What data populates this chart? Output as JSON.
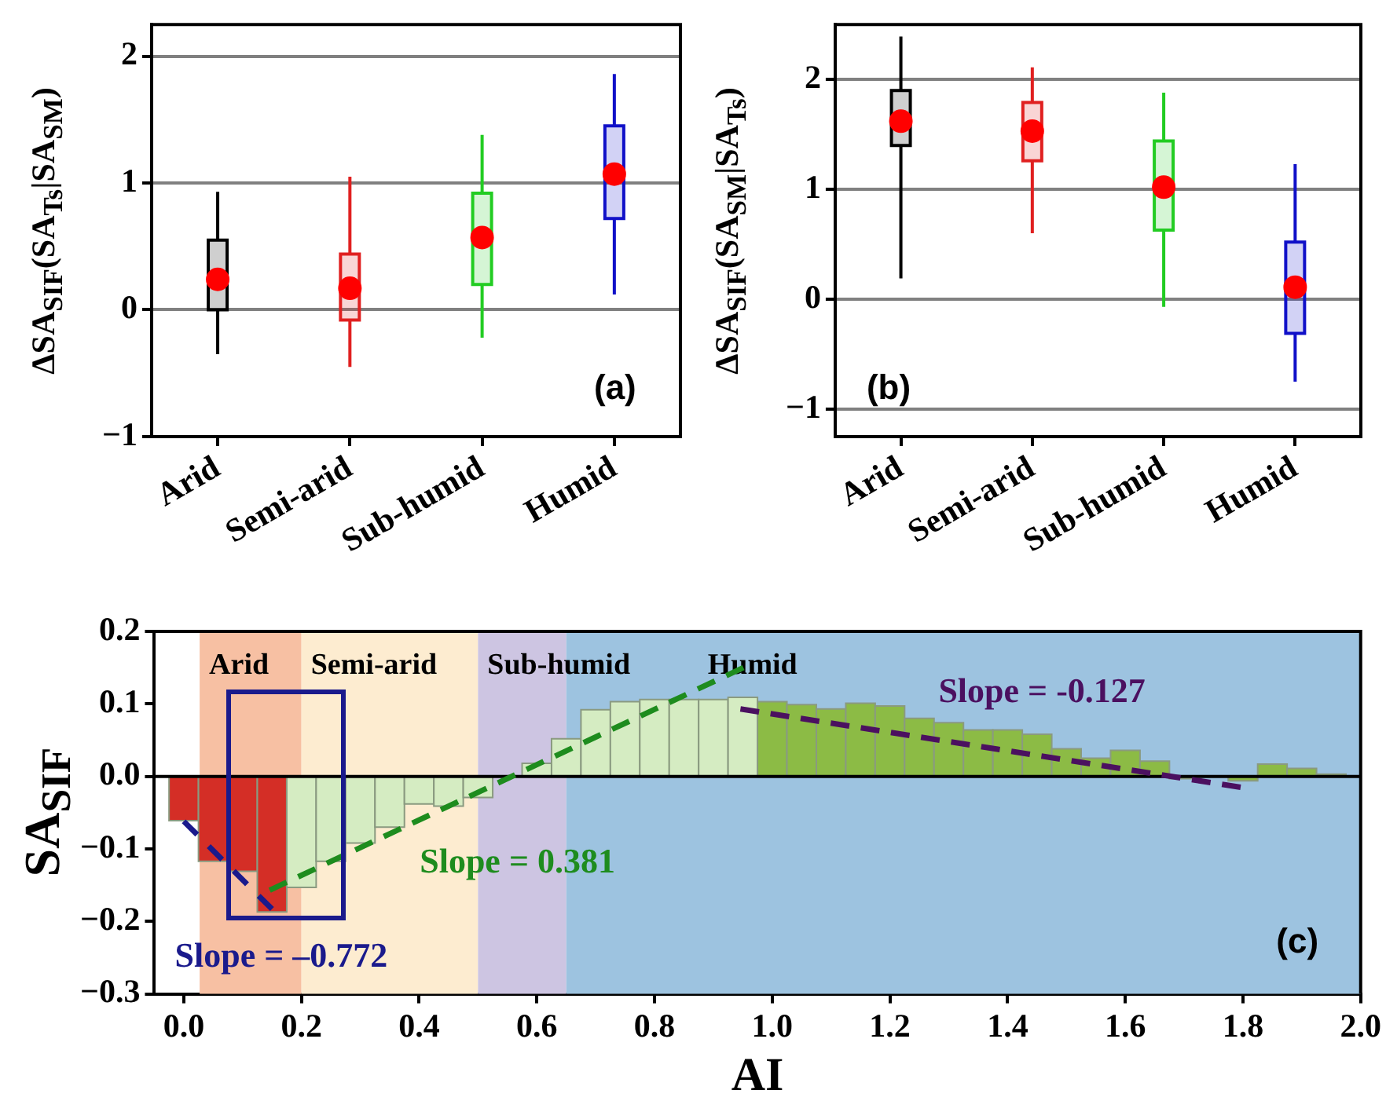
{
  "chart_data": [
    {
      "type": "box",
      "ylabel": "ΔSA$_{SIF}$(SA$_{Ts}$|SA$_{SM}$)",
      "categories": [
        "Arid",
        "Semi-arid",
        "Sub-humid",
        "Humid"
      ],
      "colors": [
        "#000000",
        "#e02020",
        "#22cc22",
        "#1010c8"
      ],
      "boxes": [
        {
          "low": -0.35,
          "q1": 0.0,
          "median": 0.2,
          "q3": 0.55,
          "high": 0.93,
          "mean": 0.24
        },
        {
          "low": -0.45,
          "q1": -0.08,
          "median": 0.15,
          "q3": 0.44,
          "high": 1.05,
          "mean": 0.17
        },
        {
          "low": -0.22,
          "q1": 0.2,
          "median": 0.55,
          "q3": 0.92,
          "high": 1.38,
          "mean": 0.57
        },
        {
          "low": 0.12,
          "q1": 0.72,
          "median": 1.08,
          "q3": 1.45,
          "high": 1.86,
          "mean": 1.07
        }
      ],
      "ylim": [
        -1,
        2.25
      ],
      "yticks": [
        {
          "value": -1,
          "label": "−1"
        },
        0,
        1,
        2
      ],
      "grid": "y",
      "annotations": [
        "(a)"
      ]
    },
    {
      "type": "box",
      "ylabel": "ΔSA$_{SIF}$(SA$_{SM}$|SA$_{Ts}$)",
      "categories": [
        "Arid",
        "Semi-arid",
        "Sub-humid",
        "Humid"
      ],
      "colors": [
        "#000000",
        "#e02020",
        "#22cc22",
        "#1010c8"
      ],
      "boxes": [
        {
          "low": 0.19,
          "q1": 1.4,
          "median": 1.62,
          "q3": 1.9,
          "high": 2.39,
          "mean": 1.62
        },
        {
          "low": 0.6,
          "q1": 1.26,
          "median": 1.5,
          "q3": 1.79,
          "high": 2.11,
          "mean": 1.53
        },
        {
          "low": -0.07,
          "q1": 0.63,
          "median": 1.0,
          "q3": 1.44,
          "high": 1.88,
          "mean": 1.02
        },
        {
          "low": -0.75,
          "q1": -0.31,
          "median": 0.1,
          "q3": 0.52,
          "high": 1.23,
          "mean": 0.11
        }
      ],
      "ylim": [
        -1.25,
        2.5
      ],
      "yticks": [
        {
          "value": -1,
          "label": "−1"
        },
        0,
        1,
        2
      ],
      "grid": "y",
      "annotations": [
        "(b)"
      ]
    },
    {
      "type": "histogram",
      "xlabel": "AI",
      "ylabel": "SA$_{SIF}$",
      "bins": [
        -0.025,
        0.025,
        0.075,
        0.125,
        0.175,
        0.225,
        0.275,
        0.325,
        0.375,
        0.425,
        0.475,
        0.525,
        0.575,
        0.625,
        0.675,
        0.725,
        0.775,
        0.825,
        0.875,
        0.925,
        0.975,
        1.025,
        1.075,
        1.125,
        1.175,
        1.225,
        1.275,
        1.325,
        1.375,
        1.425,
        1.475,
        1.525,
        1.575,
        1.625,
        1.675,
        1.725,
        1.775,
        1.825,
        1.875,
        1.925,
        1.975
      ],
      "values": [
        -0.061,
        -0.117,
        -0.131,
        -0.187,
        -0.153,
        -0.117,
        -0.092,
        -0.07,
        -0.038,
        -0.041,
        -0.029,
        0,
        0.018,
        0.052,
        0.092,
        0.103,
        0.106,
        0.106,
        0.106,
        0.109,
        0.103,
        0.099,
        0.093,
        0.101,
        0.097,
        0.08,
        0.074,
        0.064,
        0.064,
        0.058,
        0.038,
        0.025,
        0.036,
        0.021,
        -0.003,
        0,
        -0.006,
        0.017,
        0.011,
        0.003
      ],
      "colors": [
        "#d42e26",
        "#d42e26",
        "#d42e26",
        "#d42e26",
        "#d5ecc2",
        "#d5ecc2",
        "#d5ecc2",
        "#d5ecc2",
        "#d5ecc2",
        "#d5ecc2",
        "#d5ecc2",
        "#d5ecc2",
        "#d5ecc2",
        "#d5ecc2",
        "#d5ecc2",
        "#d5ecc2",
        "#d5ecc2",
        "#d5ecc2",
        "#d5ecc2",
        "#d5ecc2",
        "#8cbb45",
        "#8cbb45",
        "#8cbb45",
        "#8cbb45",
        "#8cbb45",
        "#8cbb45",
        "#8cbb45",
        "#8cbb45",
        "#8cbb45",
        "#8cbb45",
        "#8cbb45",
        "#8cbb45",
        "#8cbb45",
        "#8cbb45",
        "#8cbb45",
        "#8cbb45",
        "#8cbb45",
        "#8cbb45",
        "#8cbb45",
        "#8cbb45"
      ],
      "series": [
        {
          "type": "line",
          "color": "#1a1a8c",
          "line_style": "dashed",
          "x": [
            0.0,
            0.15
          ],
          "values": [
            -0.062,
            -0.183
          ]
        },
        {
          "type": "line",
          "color": "#1e8c1e",
          "line_style": "dashed",
          "x": [
            0.146,
            0.951
          ],
          "values": [
            -0.157,
            0.15
          ]
        },
        {
          "type": "line",
          "color": "#4b1060",
          "line_style": "dashed",
          "x": [
            0.946,
            1.796
          ],
          "values": [
            0.093,
            -0.015
          ]
        }
      ],
      "bands": [
        {
          "axis": "x",
          "from": 0.027,
          "to": 0.2,
          "label": "Arid",
          "color": "#f7c0a3"
        },
        {
          "axis": "x",
          "from": 0.2,
          "to": 0.5,
          "label": "Semi-arid",
          "color": "#fdecd0"
        },
        {
          "axis": "x",
          "from": 0.5,
          "to": 0.65,
          "label": "Sub-humid",
          "color": "#cdc5e2"
        },
        {
          "axis": "x",
          "from": 0.65,
          "to": 2.0,
          "label": "Humid",
          "color": "#9dc3e0"
        }
      ],
      "ref_lines": [
        {
          "axis": "y",
          "value": 0,
          "color": "#000000"
        }
      ],
      "xlim": [
        -0.05,
        2.0
      ],
      "xticks": [
        {
          "value": 0,
          "label": "0.0"
        },
        0.2,
        0.4,
        0.6,
        0.8,
        {
          "value": 1,
          "label": "1.0"
        },
        1.2,
        1.4,
        1.6,
        1.8,
        {
          "value": 2,
          "label": "2.0"
        }
      ],
      "ylim": [
        -0.3,
        0.2
      ],
      "yticks": [
        {
          "value": -0.3,
          "label": "−0.3"
        },
        {
          "value": -0.2,
          "label": "−0.2"
        },
        {
          "value": -0.1,
          "label": "−0.1"
        },
        {
          "value": 0,
          "label": "0.0"
        },
        0.1,
        0.2
      ],
      "annotations": [
        "Slope = –0.772",
        "Slope = 0.381",
        "Slope = -0.127",
        "(c)"
      ]
    }
  ]
}
